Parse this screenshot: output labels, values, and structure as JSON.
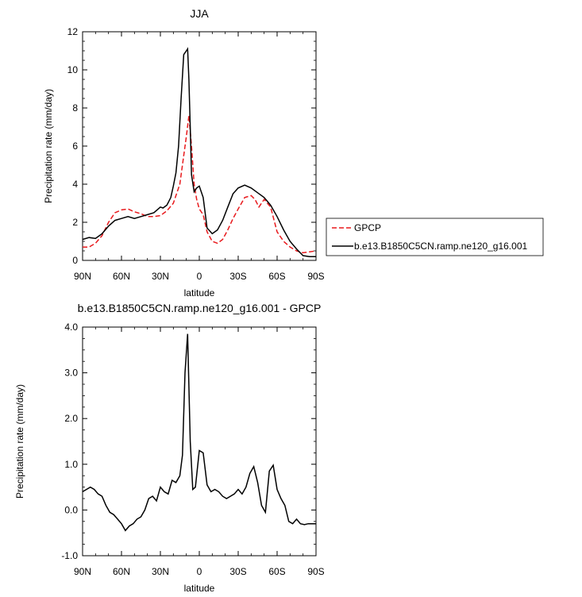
{
  "colors": {
    "gpcp": "#e8191c",
    "model": "#000000",
    "frame": "#000000"
  },
  "chart_data": [
    {
      "type": "line",
      "title": "JJA",
      "xlabel": "latitude",
      "ylabel": "Precipitation rate (mm/day)",
      "xlim": [
        90,
        -90
      ],
      "ylim": [
        0,
        12
      ],
      "x_ticks": [
        90,
        60,
        30,
        0,
        -30,
        -60,
        -90
      ],
      "x_tick_labels": [
        "90N",
        "60N",
        "30N",
        "0",
        "30S",
        "60S",
        "90S"
      ],
      "y_ticks": [
        0,
        2,
        4,
        6,
        8,
        10,
        12
      ],
      "y_tick_labels": [
        "0",
        "2",
        "4",
        "6",
        "8",
        "10",
        "12"
      ],
      "legend_position": "right",
      "series": [
        {
          "name": "GPCP",
          "style": "dashed",
          "color": "#e8191c",
          "x": [
            90,
            85,
            80,
            75,
            70,
            65,
            60,
            55,
            50,
            45,
            40,
            35,
            30,
            25,
            20,
            15,
            12,
            10,
            8,
            6,
            4,
            2,
            0,
            -3,
            -6,
            -10,
            -14,
            -18,
            -22,
            -26,
            -30,
            -35,
            -40,
            -43,
            -46,
            -50,
            -55,
            -60,
            -65,
            -70,
            -75,
            -80,
            -85,
            -90
          ],
          "y": [
            0.7,
            0.7,
            0.9,
            1.3,
            2.0,
            2.5,
            2.65,
            2.7,
            2.55,
            2.45,
            2.3,
            2.3,
            2.35,
            2.6,
            3.0,
            4.0,
            5.5,
            6.5,
            7.6,
            6.0,
            4.0,
            3.2,
            2.7,
            2.4,
            1.5,
            1.0,
            0.9,
            1.1,
            1.6,
            2.2,
            2.7,
            3.3,
            3.4,
            3.2,
            2.8,
            3.2,
            2.8,
            1.5,
            1.0,
            0.7,
            0.5,
            0.4,
            0.45,
            0.5
          ]
        },
        {
          "name": "b.e13.B1850C5CN.ramp.ne120_g16.001",
          "style": "solid",
          "color": "#000000",
          "x": [
            90,
            85,
            80,
            75,
            70,
            65,
            60,
            55,
            50,
            45,
            40,
            35,
            30,
            28,
            25,
            22,
            20,
            18,
            16,
            14,
            12,
            10,
            9,
            8,
            7,
            6,
            4,
            2,
            0,
            -3,
            -6,
            -10,
            -14,
            -18,
            -22,
            -26,
            -30,
            -35,
            -40,
            -45,
            -50,
            -55,
            -60,
            -65,
            -70,
            -75,
            -80,
            -85,
            -90
          ],
          "y": [
            1.1,
            1.2,
            1.15,
            1.4,
            1.8,
            2.1,
            2.2,
            2.3,
            2.2,
            2.3,
            2.4,
            2.5,
            2.8,
            2.75,
            2.9,
            3.3,
            3.9,
            4.6,
            6.0,
            8.5,
            10.8,
            11.0,
            11.1,
            9.5,
            7.0,
            4.5,
            3.6,
            3.8,
            3.9,
            3.3,
            1.7,
            1.4,
            1.6,
            2.1,
            2.8,
            3.5,
            3.8,
            3.95,
            3.8,
            3.55,
            3.3,
            2.9,
            2.3,
            1.6,
            1.0,
            0.6,
            0.25,
            0.2,
            0.2
          ]
        }
      ]
    },
    {
      "type": "line",
      "title": "b.e13.B1850C5CN.ramp.ne120_g16.001 - GPCP",
      "xlabel": "latitude",
      "ylabel": "Precipitation rate (mm/day)",
      "xlim": [
        90,
        -90
      ],
      "ylim": [
        -1.0,
        4.0
      ],
      "x_ticks": [
        90,
        60,
        30,
        0,
        -30,
        -60,
        -90
      ],
      "x_tick_labels": [
        "90N",
        "60N",
        "30N",
        "0",
        "30S",
        "60S",
        "90S"
      ],
      "y_ticks": [
        -1,
        0,
        1,
        2,
        3,
        4
      ],
      "y_tick_labels": [
        "-1.0",
        "0.0",
        "1.0",
        "2.0",
        "3.0",
        "4.0"
      ],
      "series": [
        {
          "name": "b.e13.B1850C5CN.ramp.ne120_g16.001 - GPCP",
          "style": "solid",
          "color": "#000000",
          "x": [
            90,
            87,
            84,
            81,
            78,
            75,
            72,
            69,
            66,
            63,
            60,
            57,
            54,
            51,
            48,
            45,
            42,
            39,
            36,
            33,
            30,
            27,
            24,
            21,
            18,
            15,
            13,
            11,
            9,
            7,
            5,
            3,
            0,
            -3,
            -6,
            -9,
            -12,
            -15,
            -18,
            -21,
            -24,
            -27,
            -30,
            -33,
            -36,
            -39,
            -42,
            -45,
            -48,
            -51,
            -54,
            -57,
            -60,
            -63,
            -66,
            -69,
            -72,
            -75,
            -78,
            -81,
            -84,
            -87,
            -90
          ],
          "y": [
            0.4,
            0.45,
            0.5,
            0.45,
            0.35,
            0.3,
            0.1,
            -0.05,
            -0.1,
            -0.2,
            -0.3,
            -0.45,
            -0.35,
            -0.3,
            -0.2,
            -0.15,
            0.0,
            0.25,
            0.3,
            0.2,
            0.5,
            0.4,
            0.35,
            0.65,
            0.6,
            0.75,
            1.2,
            3.0,
            3.85,
            1.5,
            0.45,
            0.5,
            1.3,
            1.25,
            0.55,
            0.4,
            0.45,
            0.4,
            0.3,
            0.25,
            0.3,
            0.35,
            0.45,
            0.35,
            0.5,
            0.8,
            0.95,
            0.6,
            0.1,
            -0.05,
            0.85,
            0.98,
            0.45,
            0.25,
            0.1,
            -0.25,
            -0.3,
            -0.2,
            -0.3,
            -0.32,
            -0.3,
            -0.3,
            -0.3
          ]
        }
      ]
    }
  ]
}
